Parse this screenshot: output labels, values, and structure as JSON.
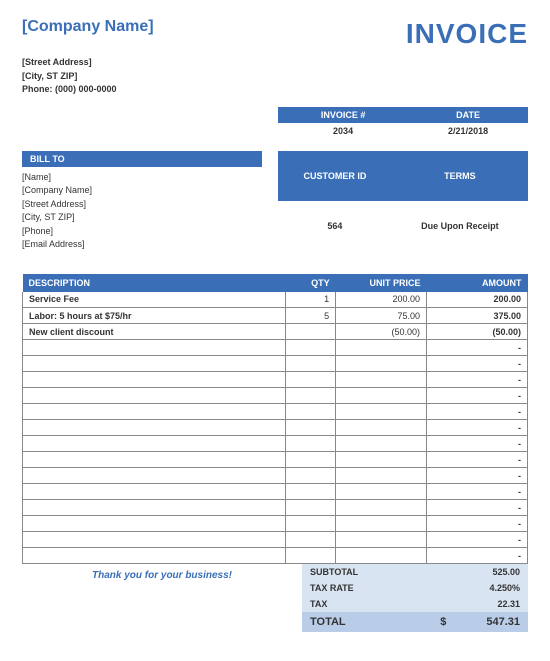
{
  "colors": {
    "primary": "#3a6fb7",
    "totals_bg_light": "#d9e4f2",
    "totals_bg_dark": "#b9cde8",
    "grid": "#888888",
    "text": "#333333",
    "background": "#ffffff"
  },
  "header": {
    "company_name": "[Company Name]",
    "invoice_title": "INVOICE",
    "sender": {
      "street": "[Street Address]",
      "city": "[City, ST  ZIP]",
      "phone": "Phone: (000) 000-0000"
    }
  },
  "meta": {
    "invoice_num_label": "INVOICE #",
    "invoice_num": "2034",
    "date_label": "DATE",
    "date": "2/21/2018"
  },
  "bill_to": {
    "header": "BILL TO",
    "name": "[Name]",
    "company": "[Company Name]",
    "street": "[Street Address]",
    "city": "[City, ST  ZIP]",
    "phone": "[Phone]",
    "email": "[Email Address]"
  },
  "customer": {
    "id_label": "CUSTOMER ID",
    "id": "564",
    "terms_label": "TERMS",
    "terms": "Due Upon Receipt"
  },
  "items": {
    "columns": {
      "description": "DESCRIPTION",
      "qty": "QTY",
      "unit_price": "UNIT PRICE",
      "amount": "AMOUNT"
    },
    "rows": [
      {
        "description": "Service Fee",
        "qty": "1",
        "unit_price": "200.00",
        "amount": "200.00"
      },
      {
        "description": "Labor: 5 hours at $75/hr",
        "qty": "5",
        "unit_price": "75.00",
        "amount": "375.00"
      },
      {
        "description": "New client discount",
        "qty": "",
        "unit_price": "(50.00)",
        "amount": "(50.00)"
      },
      {
        "description": "",
        "qty": "",
        "unit_price": "",
        "amount": "-"
      },
      {
        "description": "",
        "qty": "",
        "unit_price": "",
        "amount": "-"
      },
      {
        "description": "",
        "qty": "",
        "unit_price": "",
        "amount": "-"
      },
      {
        "description": "",
        "qty": "",
        "unit_price": "",
        "amount": "-"
      },
      {
        "description": "",
        "qty": "",
        "unit_price": "",
        "amount": "-"
      },
      {
        "description": "",
        "qty": "",
        "unit_price": "",
        "amount": "-"
      },
      {
        "description": "",
        "qty": "",
        "unit_price": "",
        "amount": "-"
      },
      {
        "description": "",
        "qty": "",
        "unit_price": "",
        "amount": "-"
      },
      {
        "description": "",
        "qty": "",
        "unit_price": "",
        "amount": "-"
      },
      {
        "description": "",
        "qty": "",
        "unit_price": "",
        "amount": "-"
      },
      {
        "description": "",
        "qty": "",
        "unit_price": "",
        "amount": "-"
      },
      {
        "description": "",
        "qty": "",
        "unit_price": "",
        "amount": "-"
      },
      {
        "description": "",
        "qty": "",
        "unit_price": "",
        "amount": "-"
      },
      {
        "description": "",
        "qty": "",
        "unit_price": "",
        "amount": "-"
      }
    ]
  },
  "footer": {
    "thanks": "Thank you for your business!",
    "subtotal_label": "SUBTOTAL",
    "subtotal": "525.00",
    "tax_rate_label": "TAX RATE",
    "tax_rate": "4.250%",
    "tax_label": "TAX",
    "tax": "22.31",
    "total_label": "TOTAL",
    "total_currency": "$",
    "total": "547.31"
  }
}
